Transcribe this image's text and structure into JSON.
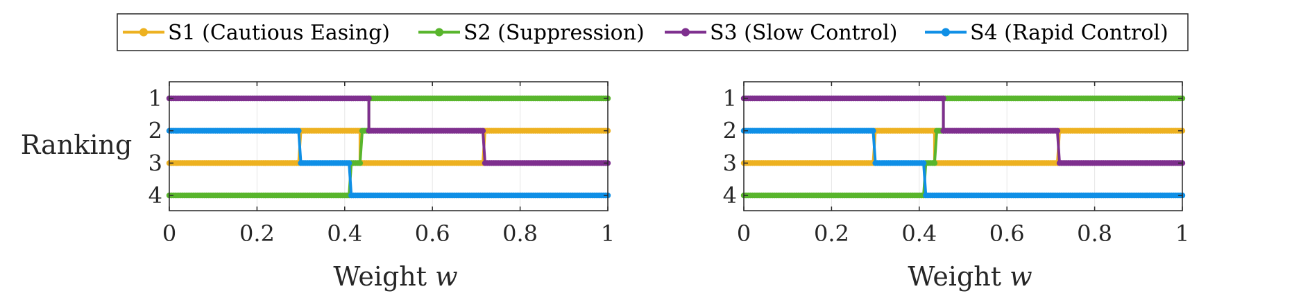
{
  "legend": {
    "placement": "top-center",
    "items": [
      {
        "label": "S1 (Cautious Easing)",
        "color": "#EDB120"
      },
      {
        "label": "S2 (Suppression)",
        "color": "#58B52C"
      },
      {
        "label": "S3 (Slow Control)",
        "color": "#7E2F8E"
      },
      {
        "label": "S4 (Rapid Control)",
        "color": "#0F8FE6"
      }
    ]
  },
  "chart_data": [
    {
      "type": "line",
      "xlabel": "Weight w",
      "ylabel": "Ranking",
      "xlim": [
        0,
        1
      ],
      "ylim": [
        1,
        4
      ],
      "y_reversed": true,
      "grid": true,
      "xticks": [
        "0",
        "0.2",
        "0.4",
        "0.6",
        "0.8",
        "1"
      ],
      "yticks": [
        "1",
        "2",
        "3",
        "4"
      ],
      "series": [
        {
          "name": "S1 (Cautious Easing)",
          "color": "#EDB120",
          "segments": [
            {
              "x": [
                0,
                0.295
              ],
              "y": 3
            },
            {
              "x": [
                0.3,
                0.435
              ],
              "y": 2
            },
            {
              "x": [
                0.435,
                0.715
              ],
              "y": 3
            },
            {
              "x": [
                0.72,
                1
              ],
              "y": 2
            }
          ]
        },
        {
          "name": "S2 (Suppression)",
          "color": "#58B52C",
          "segments": [
            {
              "x": [
                0,
                0.41
              ],
              "y": 4
            },
            {
              "x": [
                0.415,
                0.435
              ],
              "y": 3
            },
            {
              "x": [
                0.44,
                0.455
              ],
              "y": 2
            },
            {
              "x": [
                0.455,
                1
              ],
              "y": 1
            }
          ]
        },
        {
          "name": "S3 (Slow Control)",
          "color": "#7E2F8E",
          "segments": [
            {
              "x": [
                0,
                0.455
              ],
              "y": 1
            },
            {
              "x": [
                0.455,
                0.715
              ],
              "y": 2
            },
            {
              "x": [
                0.72,
                1
              ],
              "y": 3
            }
          ]
        },
        {
          "name": "S4 (Rapid Control)",
          "color": "#0F8FE6",
          "segments": [
            {
              "x": [
                0,
                0.295
              ],
              "y": 2
            },
            {
              "x": [
                0.3,
                0.41
              ],
              "y": 3
            },
            {
              "x": [
                0.415,
                1
              ],
              "y": 4
            }
          ]
        }
      ]
    },
    {
      "type": "line",
      "xlabel": "Weight w",
      "ylabel": "",
      "xlim": [
        0,
        1
      ],
      "ylim": [
        1,
        4
      ],
      "y_reversed": true,
      "grid": true,
      "xticks": [
        "0",
        "0.2",
        "0.4",
        "0.6",
        "0.8",
        "1"
      ],
      "yticks": [
        "1",
        "2",
        "3",
        "4"
      ],
      "series": [
        {
          "name": "S1 (Cautious Easing)",
          "color": "#EDB120",
          "segments": [
            {
              "x": [
                0,
                0.295
              ],
              "y": 3
            },
            {
              "x": [
                0.3,
                0.435
              ],
              "y": 2
            },
            {
              "x": [
                0.435,
                0.715
              ],
              "y": 3
            },
            {
              "x": [
                0.72,
                1
              ],
              "y": 2
            }
          ]
        },
        {
          "name": "S2 (Suppression)",
          "color": "#58B52C",
          "segments": [
            {
              "x": [
                0,
                0.41
              ],
              "y": 4
            },
            {
              "x": [
                0.415,
                0.435
              ],
              "y": 3
            },
            {
              "x": [
                0.44,
                0.455
              ],
              "y": 2
            },
            {
              "x": [
                0.455,
                1
              ],
              "y": 1
            }
          ]
        },
        {
          "name": "S3 (Slow Control)",
          "color": "#7E2F8E",
          "segments": [
            {
              "x": [
                0,
                0.455
              ],
              "y": 1
            },
            {
              "x": [
                0.455,
                0.715
              ],
              "y": 2
            },
            {
              "x": [
                0.72,
                1
              ],
              "y": 3
            }
          ]
        },
        {
          "name": "S4 (Rapid Control)",
          "color": "#0F8FE6",
          "segments": [
            {
              "x": [
                0,
                0.295
              ],
              "y": 2
            },
            {
              "x": [
                0.3,
                0.41
              ],
              "y": 3
            },
            {
              "x": [
                0.415,
                1
              ],
              "y": 4
            }
          ]
        }
      ]
    }
  ]
}
